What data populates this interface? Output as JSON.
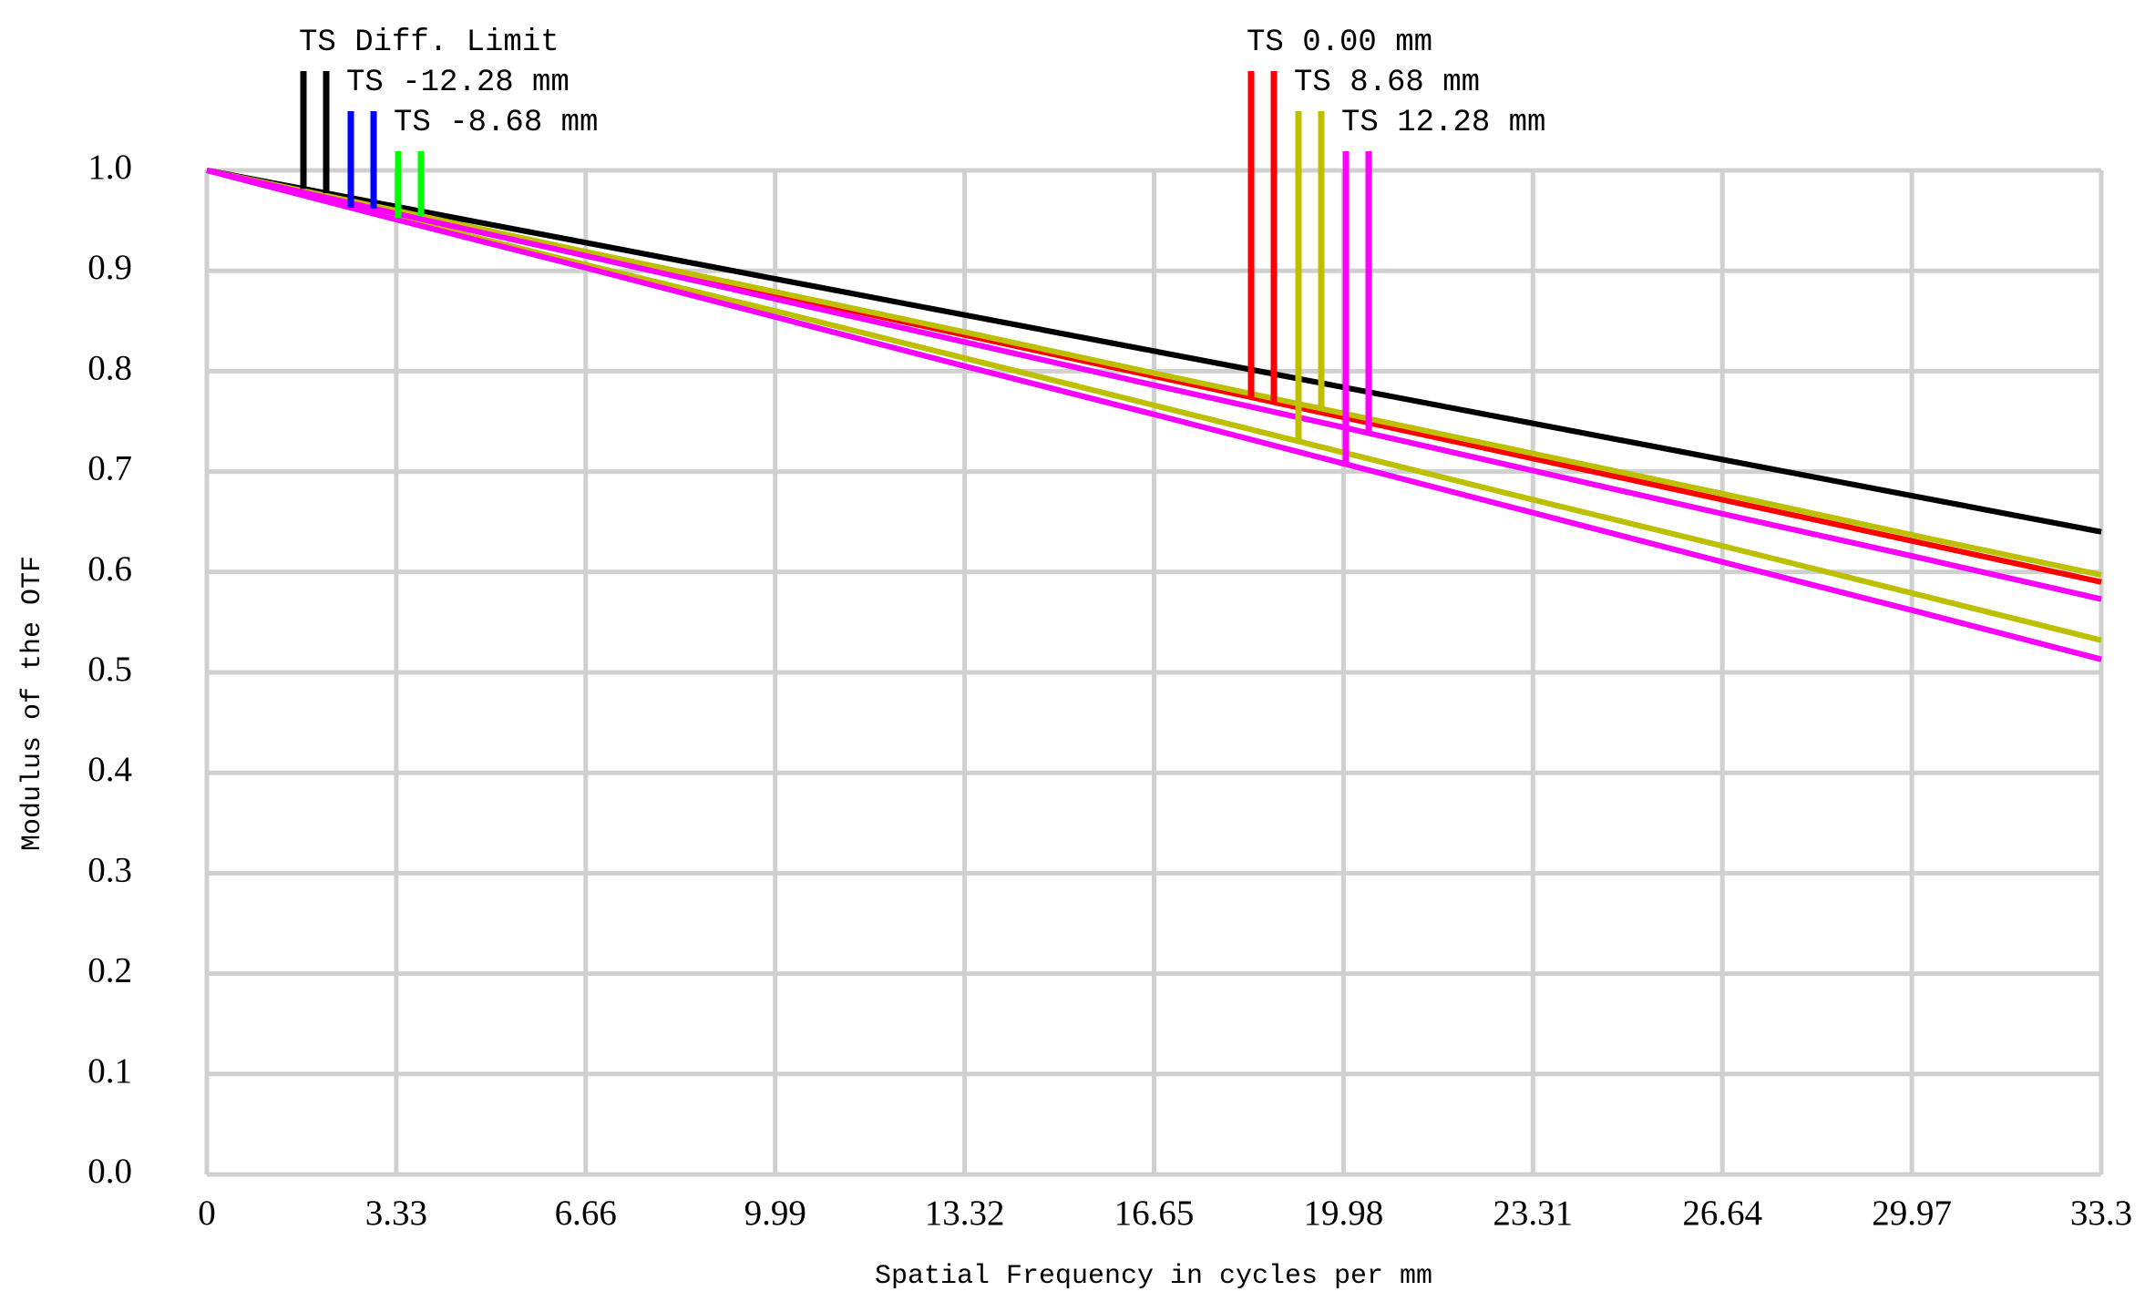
{
  "chart_data": {
    "type": "line",
    "xlabel": "Spatial Frequency in cycles per mm",
    "ylabel": "Modulus of the OTF",
    "x": [
      0,
      3.33,
      6.66,
      9.99,
      13.32,
      16.65,
      19.98,
      23.31,
      26.64,
      29.97,
      33.3
    ],
    "xlim": [
      0,
      33.3
    ],
    "xticks": [
      0,
      3.33,
      6.66,
      9.99,
      13.32,
      16.65,
      19.98,
      23.31,
      26.64,
      29.97,
      33.3
    ],
    "ylim": [
      0,
      1
    ],
    "yticks": [
      {
        "value": 0,
        "label": "0.0"
      },
      0.1,
      0.2,
      0.3,
      0.4,
      0.5,
      0.6,
      0.7,
      0.8,
      0.9,
      {
        "value": 1,
        "label": "1.0"
      }
    ],
    "grid": true,
    "series": [
      {
        "name": "TS Diff. Limit",
        "color": "#000000",
        "values": [
          1,
          0.964,
          0.928,
          0.892,
          0.856,
          0.82,
          0.784,
          0.748,
          0.712,
          0.676,
          0.64
        ],
        "values_s": [
          1,
          0.964,
          0.928,
          0.892,
          0.856,
          0.82,
          0.784,
          0.748,
          0.712,
          0.676,
          0.64
        ]
      },
      {
        "name": "TS -12.28 mm",
        "color": "#0000ff",
        "values": [
          1,
          0.957,
          0.915,
          0.872,
          0.829,
          0.786,
          0.744,
          0.701,
          0.658,
          0.616,
          0.573
        ],
        "values_s": [
          1,
          0.951,
          0.903,
          0.854,
          0.805,
          0.757,
          0.708,
          0.659,
          0.61,
          0.562,
          0.513
        ]
      },
      {
        "name": "TS -8.68 mm",
        "color": "#00ff00",
        "values": [
          1,
          0.96,
          0.919,
          0.879,
          0.839,
          0.798,
          0.758,
          0.718,
          0.678,
          0.637,
          0.597
        ],
        "values_s": [
          1,
          0.953,
          0.906,
          0.86,
          0.813,
          0.766,
          0.719,
          0.672,
          0.626,
          0.579,
          0.532
        ]
      },
      {
        "name": "TS 0.00 mm",
        "color": "#ff0000",
        "values": [
          1,
          0.959,
          0.918,
          0.877,
          0.836,
          0.795,
          0.754,
          0.713,
          0.672,
          0.631,
          0.59
        ],
        "values_s": [
          1,
          0.959,
          0.918,
          0.877,
          0.836,
          0.795,
          0.754,
          0.713,
          0.672,
          0.631,
          0.59
        ]
      },
      {
        "name": "TS 8.68 mm",
        "color": "#bfbf00",
        "values": [
          1,
          0.96,
          0.919,
          0.879,
          0.839,
          0.798,
          0.758,
          0.718,
          0.678,
          0.637,
          0.597
        ],
        "values_s": [
          1,
          0.953,
          0.906,
          0.86,
          0.813,
          0.766,
          0.719,
          0.672,
          0.626,
          0.579,
          0.532
        ]
      },
      {
        "name": "TS 12.28 mm",
        "color": "#ff00ff",
        "values": [
          1,
          0.957,
          0.915,
          0.872,
          0.829,
          0.786,
          0.744,
          0.701,
          0.658,
          0.616,
          0.573
        ],
        "values_s": [
          1,
          0.951,
          0.903,
          0.854,
          0.805,
          0.757,
          0.708,
          0.659,
          0.61,
          0.562,
          0.513
        ]
      }
    ]
  }
}
